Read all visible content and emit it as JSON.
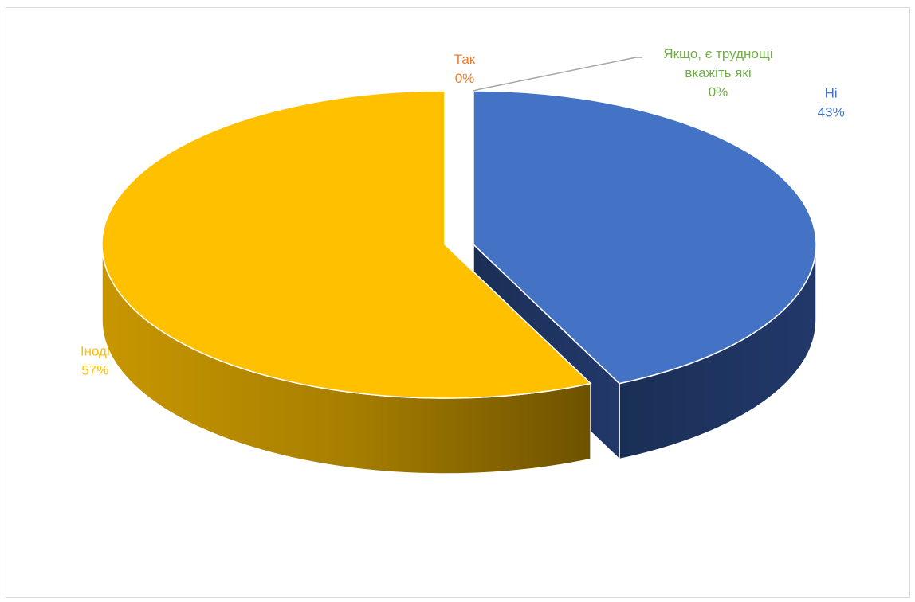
{
  "chart_data": {
    "type": "pie",
    "style": "3d-exploded",
    "title": "",
    "legend": "none",
    "slices": [
      {
        "label": "Так",
        "value": 0,
        "percent_label": "0%",
        "color": "#ED7D31"
      },
      {
        "label": "Ні",
        "value": 43,
        "percent_label": "43%",
        "color": "#4472C4",
        "side_color": "#1F3864"
      },
      {
        "label": "Іноді",
        "value": 57,
        "percent_label": "57%",
        "color": "#FFC000",
        "side_color": "#BF9000"
      },
      {
        "label": "Якщо, є труднощі вкажіть які",
        "label_lines": [
          "Якщо, є труднощі",
          "вкажіть які"
        ],
        "value": 0,
        "percent_label": "0%",
        "color": "#70AD47"
      }
    ]
  }
}
